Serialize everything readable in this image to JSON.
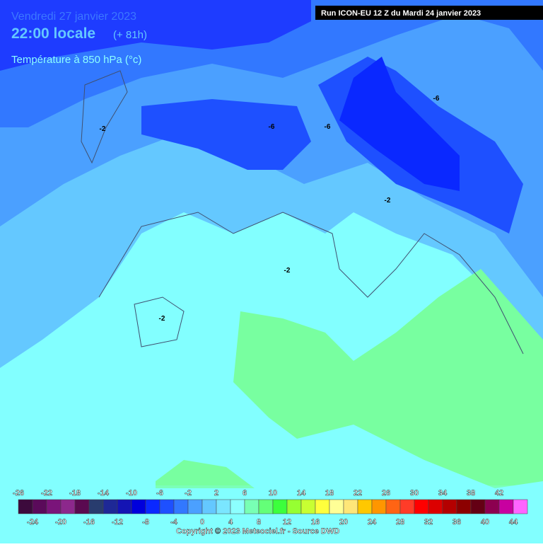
{
  "header": {
    "date": "Vendredi 27 janvier 2023",
    "time": "22:00 locale",
    "lead": "(+ 81h)",
    "variable": "Température à 850 hPa (°c)"
  },
  "run": "Run ICON-EU 12 Z du Mardi 24 janvier 2023",
  "contour_labels": [
    "-2",
    "-6",
    "-2",
    "-6",
    "-6",
    "-2",
    "-2"
  ],
  "legend": {
    "ticks": [
      -26,
      -24,
      -22,
      -20,
      -18,
      -16,
      -14,
      -12,
      -10,
      -8,
      -6,
      -4,
      -2,
      0,
      2,
      4,
      6,
      8,
      10,
      12,
      14,
      16,
      18,
      20,
      22,
      24,
      26,
      28,
      30,
      32,
      34,
      36,
      38,
      40,
      42,
      44
    ],
    "colors": [
      "#3c0a3c",
      "#5a0a5a",
      "#7a147a",
      "#8c288c",
      "#5a0a50",
      "#283c6e",
      "#1e2896",
      "#1414b4",
      "#0000dc",
      "#0a28ff",
      "#1e50ff",
      "#3278ff",
      "#4ba0ff",
      "#64c8ff",
      "#7ae6ff",
      "#8cffff",
      "#78ffb4",
      "#64ff78",
      "#3cff3c",
      "#96ff32",
      "#c8ff32",
      "#ffff3c",
      "#ffff96",
      "#ffe678",
      "#ffc800",
      "#ff9600",
      "#ff6414",
      "#ff3c28",
      "#ff0000",
      "#dc0000",
      "#b40000",
      "#8c0000",
      "#640014",
      "#8c0050",
      "#c800a0",
      "#ff64ff"
    ]
  },
  "copyright": "Copyright © 2023 Meteociel.fr - Source DWD"
}
